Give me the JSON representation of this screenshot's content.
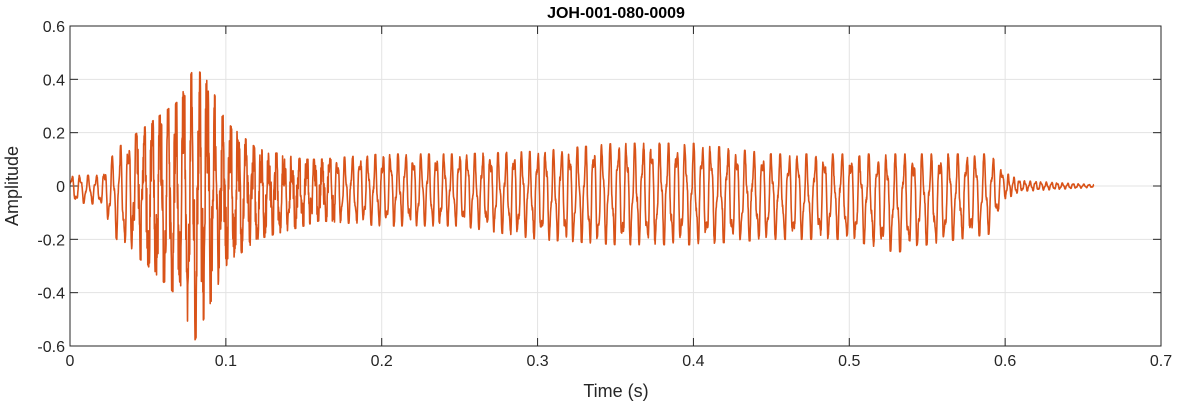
{
  "chart_data": {
    "type": "line",
    "title": "JOH-001-080-0009",
    "xlabel": "Time (s)",
    "ylabel": "Amplitude",
    "xlim": [
      0,
      0.7
    ],
    "ylim": [
      -0.6,
      0.6
    ],
    "xticks": [
      0,
      0.1,
      0.2,
      0.3,
      0.4,
      0.5,
      0.6,
      0.7
    ],
    "yticks": [
      -0.6,
      -0.4,
      -0.2,
      0,
      0.2,
      0.4,
      0.6
    ],
    "xtick_labels": [
      "0",
      "0.1",
      "0.2",
      "0.3",
      "0.4",
      "0.5",
      "0.6",
      "0.7"
    ],
    "ytick_labels": [
      "-0.6",
      "-0.4",
      "-0.2",
      "0",
      "0.2",
      "0.4",
      "0.6"
    ],
    "grid": true,
    "line_color": "#D95319",
    "signal_duration_s": 0.657,
    "waveform_envelope": {
      "t": [
        0,
        0.02,
        0.03,
        0.05,
        0.07,
        0.08,
        0.09,
        0.1,
        0.12,
        0.15,
        0.16,
        0.2,
        0.25,
        0.3,
        0.35,
        0.4,
        0.45,
        0.5,
        0.53,
        0.55,
        0.59,
        0.6,
        0.61,
        0.657
      ],
      "max": [
        0.04,
        0.04,
        0.14,
        0.23,
        0.32,
        0.45,
        0.38,
        0.24,
        0.14,
        0.1,
        0.1,
        0.12,
        0.12,
        0.13,
        0.16,
        0.16,
        0.12,
        0.12,
        0.12,
        0.12,
        0.12,
        0.05,
        0.02,
        0.005
      ],
      "min": [
        -0.06,
        -0.07,
        -0.2,
        -0.3,
        -0.42,
        -0.58,
        -0.44,
        -0.3,
        -0.2,
        -0.15,
        -0.13,
        -0.15,
        -0.15,
        -0.2,
        -0.22,
        -0.22,
        -0.2,
        -0.2,
        -0.25,
        -0.22,
        -0.18,
        -0.05,
        -0.02,
        -0.005
      ],
      "dominant_frequency_hz": 190
    }
  }
}
